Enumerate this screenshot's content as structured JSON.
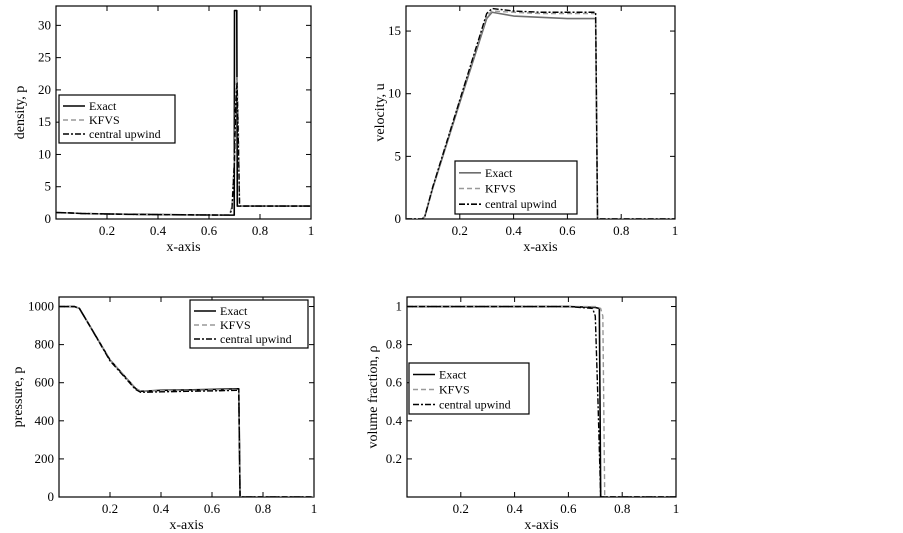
{
  "chart_data": [
    {
      "type": "line",
      "xlabel": "x-axis",
      "ylabel": "density, p",
      "xlim": [
        0,
        1
      ],
      "ylim": [
        0,
        33
      ],
      "xticks": [
        0.2,
        0.4,
        0.6,
        0.8,
        1
      ],
      "yticks": [
        0,
        5,
        10,
        15,
        20,
        25,
        30
      ],
      "legend": "mid-left",
      "series": [
        {
          "name": "Exact",
          "style": "solid",
          "color": "#000000",
          "x": [
            0,
            0.05,
            0.1,
            0.2,
            0.3,
            0.4,
            0.5,
            0.6,
            0.69,
            0.699,
            0.7,
            0.701,
            0.709,
            0.711,
            0.75,
            0.8,
            1
          ],
          "y": [
            1,
            0.95,
            0.85,
            0.78,
            0.72,
            0.68,
            0.65,
            0.62,
            0.6,
            0.6,
            32.3,
            32.3,
            32.3,
            2,
            2,
            2,
            2
          ]
        },
        {
          "name": "KFVS",
          "style": "dashed",
          "color": "#999999",
          "x": [
            0,
            0.05,
            0.1,
            0.2,
            0.3,
            0.4,
            0.5,
            0.6,
            0.68,
            0.69,
            0.7,
            0.705,
            0.71,
            0.715,
            0.72,
            0.75,
            0.8,
            1
          ],
          "y": [
            1,
            0.95,
            0.85,
            0.78,
            0.72,
            0.68,
            0.65,
            0.62,
            0.61,
            2,
            10,
            20,
            22,
            15,
            2,
            2,
            2,
            2
          ]
        },
        {
          "name": "central upwind",
          "style": "dashdot",
          "color": "#000000",
          "x": [
            0,
            0.05,
            0.1,
            0.2,
            0.3,
            0.4,
            0.5,
            0.6,
            0.68,
            0.69,
            0.7,
            0.705,
            0.71,
            0.715,
            0.72,
            0.75,
            0.8,
            1
          ],
          "y": [
            1,
            0.95,
            0.85,
            0.78,
            0.72,
            0.68,
            0.65,
            0.62,
            0.61,
            1.5,
            9,
            18,
            21,
            12,
            2,
            2,
            2,
            2
          ]
        }
      ]
    },
    {
      "type": "line",
      "xlabel": "x-axis",
      "ylabel": "velocity, u",
      "xlim": [
        0,
        1
      ],
      "ylim": [
        0,
        17
      ],
      "xticks": [
        0.2,
        0.4,
        0.6,
        0.8,
        1
      ],
      "yticks": [
        0,
        5,
        10,
        15
      ],
      "legend": "bottom-center",
      "series": [
        {
          "name": "Exact",
          "style": "solid",
          "color": "#6e6e6e",
          "x": [
            0,
            0.06,
            0.07,
            0.1,
            0.2,
            0.3,
            0.32,
            0.4,
            0.5,
            0.6,
            0.7,
            0.705,
            0.712,
            0.8,
            1
          ],
          "y": [
            0,
            0,
            0.2,
            2.5,
            9.3,
            16,
            16.5,
            16.2,
            16.1,
            16,
            16,
            16,
            0,
            0,
            0
          ]
        },
        {
          "name": "KFVS",
          "style": "dashed",
          "color": "#999999",
          "x": [
            0,
            0.06,
            0.07,
            0.1,
            0.2,
            0.3,
            0.32,
            0.4,
            0.5,
            0.6,
            0.7,
            0.705,
            0.712,
            0.8,
            1
          ],
          "y": [
            0,
            0,
            0.2,
            2.6,
            9.5,
            16.2,
            16.6,
            16.5,
            16.4,
            16.4,
            16.4,
            16.4,
            0,
            0,
            0
          ]
        },
        {
          "name": "central upwind",
          "style": "dashdot",
          "color": "#000000",
          "x": [
            0,
            0.06,
            0.07,
            0.1,
            0.2,
            0.3,
            0.32,
            0.4,
            0.5,
            0.6,
            0.7,
            0.705,
            0.712,
            0.8,
            1
          ],
          "y": [
            0,
            0,
            0.2,
            2.6,
            9.5,
            16.4,
            16.8,
            16.6,
            16.5,
            16.5,
            16.5,
            16.5,
            0,
            0,
            0
          ]
        }
      ]
    },
    {
      "type": "line",
      "xlabel": "x-axis",
      "ylabel": "pressure, p",
      "xlim": [
        0,
        1
      ],
      "ylim": [
        0,
        1050
      ],
      "xticks": [
        0.2,
        0.4,
        0.6,
        0.8,
        1
      ],
      "yticks": [
        0,
        200,
        400,
        600,
        800,
        1000
      ],
      "legend": "top-right",
      "series": [
        {
          "name": "Exact",
          "style": "solid",
          "color": "#000000",
          "x": [
            0,
            0.06,
            0.08,
            0.12,
            0.2,
            0.3,
            0.32,
            0.4,
            0.5,
            0.6,
            0.7,
            0.705,
            0.71,
            0.8,
            1
          ],
          "y": [
            1000,
            1000,
            990,
            900,
            720,
            570,
            555,
            560,
            562,
            565,
            568,
            568,
            0,
            0,
            0
          ]
        },
        {
          "name": "KFVS",
          "style": "dashed",
          "color": "#999999",
          "x": [
            0,
            0.06,
            0.08,
            0.12,
            0.2,
            0.3,
            0.32,
            0.4,
            0.5,
            0.6,
            0.7,
            0.705,
            0.71,
            0.8,
            1
          ],
          "y": [
            1000,
            1000,
            990,
            900,
            720,
            570,
            555,
            558,
            560,
            562,
            565,
            565,
            0,
            0,
            0
          ]
        },
        {
          "name": "central upwind",
          "style": "dashdot",
          "color": "#000000",
          "x": [
            0,
            0.06,
            0.08,
            0.12,
            0.2,
            0.3,
            0.32,
            0.4,
            0.5,
            0.6,
            0.7,
            0.705,
            0.71,
            0.8,
            1
          ],
          "y": [
            1000,
            1000,
            990,
            900,
            715,
            565,
            550,
            552,
            555,
            557,
            560,
            560,
            0,
            0,
            0
          ]
        }
      ]
    },
    {
      "type": "line",
      "xlabel": "x-axis",
      "ylabel": "volume fraction, ρ",
      "xlim": [
        0,
        1
      ],
      "ylim": [
        0,
        1.05
      ],
      "xticks": [
        0.2,
        0.4,
        0.6,
        0.8,
        1
      ],
      "yticks": [
        0.2,
        0.4,
        0.6,
        0.8,
        1
      ],
      "legend": "mid-left",
      "series": [
        {
          "name": "Exact",
          "style": "solid",
          "color": "#000000",
          "x": [
            0,
            0.2,
            0.4,
            0.6,
            0.7,
            0.715,
            0.72,
            0.725,
            0.8,
            1
          ],
          "y": [
            1,
            1,
            1,
            1,
            0.995,
            0.99,
            0,
            0,
            0,
            0
          ]
        },
        {
          "name": "KFVS",
          "style": "dashed",
          "color": "#999999",
          "x": [
            0,
            0.2,
            0.4,
            0.6,
            0.7,
            0.72,
            0.728,
            0.735,
            0.8,
            1
          ],
          "y": [
            1,
            1,
            1,
            1,
            1,
            0.99,
            0.95,
            0,
            0,
            0
          ]
        },
        {
          "name": "central upwind",
          "style": "dashdot",
          "color": "#000000",
          "x": [
            0,
            0.2,
            0.4,
            0.6,
            0.69,
            0.7,
            0.71,
            0.72,
            0.8,
            1
          ],
          "y": [
            1,
            1,
            1,
            1,
            0.99,
            0.95,
            0.5,
            0,
            0,
            0
          ]
        }
      ]
    }
  ]
}
